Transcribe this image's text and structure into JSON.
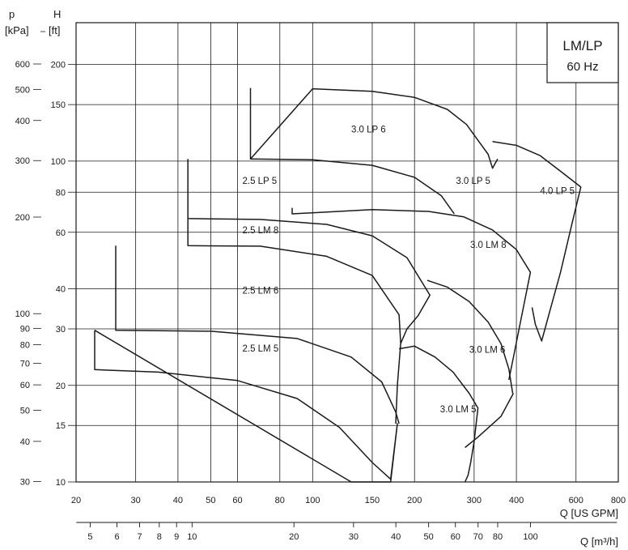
{
  "chart_data": {
    "type": "line",
    "title": "LM/LP",
    "subtitle": "60 Hz",
    "x_scale": "log",
    "y_scale": "log",
    "grid": true,
    "title_box": "top-right",
    "xlim": [
      20,
      800
    ],
    "ylim": [
      10,
      270
    ],
    "x_axis": {
      "label": "Q [US GPM]",
      "ticks": [
        20,
        30,
        40,
        50,
        60,
        80,
        100,
        150,
        200,
        300,
        400,
        600,
        800
      ],
      "tick_labels": [
        "20",
        "30",
        "40",
        "50",
        "60",
        "80",
        "100",
        "150",
        "200",
        "300",
        "400",
        "600",
        "800"
      ]
    },
    "x2_axis": {
      "label": "Q [m³/h]",
      "ticks": [
        5,
        6,
        7,
        8,
        9,
        10,
        20,
        30,
        40,
        50,
        60,
        70,
        80,
        100
      ],
      "tick_labels": [
        "5",
        "6",
        "7",
        "8",
        "9",
        "10",
        "20",
        "30",
        "40",
        "50",
        "60",
        "70",
        "80",
        "100"
      ]
    },
    "y_axis": {
      "label": "H",
      "unit": "[ft]",
      "ticks": [
        10,
        15,
        20,
        30,
        40,
        60,
        80,
        100,
        150,
        200
      ],
      "tick_labels": [
        "10",
        "15",
        "20",
        "30",
        "40",
        "60",
        "80",
        "100",
        "150",
        "200"
      ]
    },
    "y2_axis": {
      "label": "p",
      "unit": "[kPa]",
      "ticks": [
        30,
        40,
        50,
        60,
        70,
        80,
        90,
        100,
        200,
        300,
        400,
        500,
        600
      ],
      "tick_labels": [
        "30",
        "40",
        "50",
        "60",
        "70",
        "80",
        "90",
        "100",
        "200",
        "300",
        "400",
        "500",
        "600"
      ]
    },
    "series": [
      {
        "name": "2.5 LM 5",
        "label_at": [
          62,
          25.5
        ],
        "x": [
          22.7,
          22.7,
          35,
          60,
          90,
          120,
          150,
          170,
          178,
          170,
          158,
          145,
          135,
          130,
          22.7
        ],
        "y": [
          29.7,
          22.4,
          22.0,
          20.7,
          18.2,
          14.8,
          11.5,
          10.2,
          15.2,
          10,
          10,
          10,
          10,
          10,
          29.7
        ]
      },
      {
        "name": "2.5 LM 6",
        "label_at": [
          62,
          38.6
        ],
        "x": [
          26.2,
          26.2,
          50,
          90,
          130,
          160,
          176,
          180
        ],
        "y": [
          54.5,
          29.7,
          29.5,
          28.0,
          24.5,
          20.5,
          16.5,
          15.2
        ]
      },
      {
        "name": "2.5 LM 8",
        "label_at": [
          62,
          59.5
        ],
        "x": [
          42.8,
          42.8,
          70,
          110,
          150,
          180,
          182,
          178,
          176
        ],
        "y": [
          66.2,
          54.5,
          54.3,
          50.5,
          44,
          33.2,
          27.0,
          20,
          15.2
        ]
      },
      {
        "name": "2.5 LP 5",
        "label_at": [
          62,
          85
        ],
        "x": [
          42.8,
          42.8,
          70,
          110,
          150,
          190,
          222,
          205,
          190,
          182
        ],
        "y": [
          101.5,
          66.2,
          65.8,
          63.5,
          58.5,
          50,
          38.2,
          33,
          30,
          27.0
        ]
      },
      {
        "name": "3.0 LP 6",
        "label_at": [
          130,
          123
        ],
        "x": [
          65.5,
          65.5,
          100,
          150,
          200,
          250,
          285,
          310,
          330,
          340,
          352
        ],
        "y": [
          169,
          101.5,
          168,
          165,
          158,
          145,
          130,
          115,
          105,
          95,
          101.5
        ]
      },
      {
        "name": "3.0 LP 5",
        "label_at": [
          265,
          85
        ],
        "x": [
          65.5,
          100,
          150,
          200,
          240,
          262
        ],
        "y": [
          101.5,
          101,
          97,
          89,
          78,
          68.5
        ]
      },
      {
        "name": "4.0 LP 5",
        "label_at": [
          470,
          79
        ],
        "x": [
          340,
          400,
          470,
          540,
          620,
          580,
          540,
          500,
          475,
          455,
          445
        ],
        "y": [
          115,
          112,
          104,
          93,
          83,
          62,
          45,
          33.5,
          27.5,
          31,
          35
        ]
      },
      {
        "name": "3.0 LM 8",
        "label_at": [
          292,
          53.7
        ],
        "x": [
          87,
          87,
          150,
          220,
          280,
          340,
          400,
          440,
          380
        ],
        "y": [
          71.5,
          68.5,
          70.6,
          69.7,
          67,
          61,
          53,
          45,
          20.8
        ]
      },
      {
        "name": "3.0 LM 6",
        "label_at": [
          290,
          25.3
        ],
        "x": [
          218,
          250,
          290,
          330,
          360,
          380,
          390
        ],
        "y": [
          42.5,
          40.5,
          36.5,
          31.5,
          27,
          22.5,
          18.9
        ]
      },
      {
        "name": "3.0 LM 5",
        "label_at": [
          238,
          16.5
        ],
        "x": [
          180,
          200,
          230,
          260,
          290,
          308,
          300,
          293,
          288,
          282
        ],
        "y": [
          26.0,
          26.5,
          24.5,
          22.0,
          18.9,
          17.0,
          13.4,
          11.5,
          10.5,
          10
        ],
        "lower_x": [
          282,
          308,
          360,
          392
        ],
        "lower_y": [
          12.8,
          13.8,
          16.0,
          18.9
        ]
      }
    ]
  }
}
